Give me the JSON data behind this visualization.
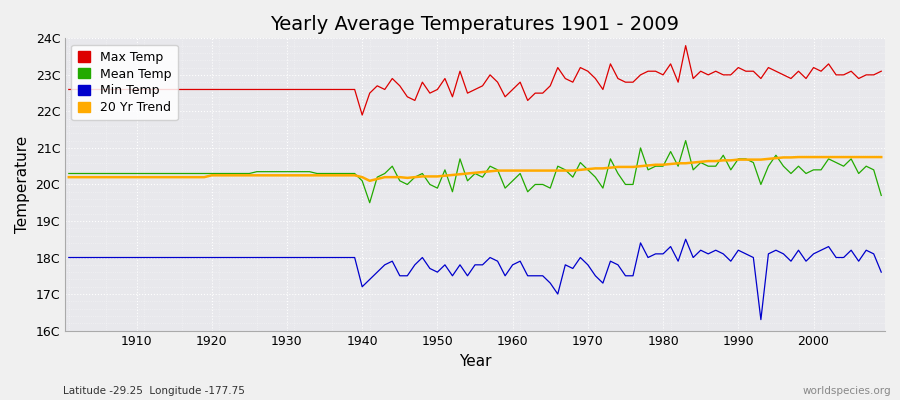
{
  "title": "Yearly Average Temperatures 1901 - 2009",
  "xlabel": "Year",
  "ylabel": "Temperature",
  "lat_lon_label": "Latitude -29.25  Longitude -177.75",
  "watermark": "worldspecies.org",
  "years": [
    1901,
    1902,
    1903,
    1904,
    1905,
    1906,
    1907,
    1908,
    1909,
    1910,
    1911,
    1912,
    1913,
    1914,
    1915,
    1916,
    1917,
    1918,
    1919,
    1920,
    1921,
    1922,
    1923,
    1924,
    1925,
    1926,
    1927,
    1928,
    1929,
    1930,
    1931,
    1932,
    1933,
    1934,
    1935,
    1936,
    1937,
    1938,
    1939,
    1940,
    1941,
    1942,
    1943,
    1944,
    1945,
    1946,
    1947,
    1948,
    1949,
    1950,
    1951,
    1952,
    1953,
    1954,
    1955,
    1956,
    1957,
    1958,
    1959,
    1960,
    1961,
    1962,
    1963,
    1964,
    1965,
    1966,
    1967,
    1968,
    1969,
    1970,
    1971,
    1972,
    1973,
    1974,
    1975,
    1976,
    1977,
    1978,
    1979,
    1980,
    1981,
    1982,
    1983,
    1984,
    1985,
    1986,
    1987,
    1988,
    1989,
    1990,
    1991,
    1992,
    1993,
    1994,
    1995,
    1996,
    1997,
    1998,
    1999,
    2000,
    2001,
    2002,
    2003,
    2004,
    2005,
    2006,
    2007,
    2008,
    2009
  ],
  "max_temp": [
    22.6,
    22.6,
    22.6,
    22.6,
    22.6,
    22.6,
    22.6,
    22.6,
    22.6,
    22.6,
    22.6,
    22.6,
    22.6,
    22.6,
    22.6,
    22.6,
    22.6,
    22.6,
    22.6,
    22.6,
    22.6,
    22.6,
    22.6,
    22.6,
    22.6,
    22.6,
    22.6,
    22.6,
    22.6,
    22.6,
    22.6,
    22.6,
    22.6,
    22.6,
    22.6,
    22.6,
    22.6,
    22.6,
    22.6,
    21.9,
    22.5,
    22.7,
    22.6,
    22.9,
    22.7,
    22.4,
    22.3,
    22.8,
    22.5,
    22.6,
    22.9,
    22.4,
    23.1,
    22.5,
    22.6,
    22.7,
    23.0,
    22.8,
    22.4,
    22.6,
    22.8,
    22.3,
    22.5,
    22.5,
    22.7,
    23.2,
    22.9,
    22.8,
    23.2,
    23.1,
    22.9,
    22.6,
    23.3,
    22.9,
    22.8,
    22.8,
    23.0,
    23.1,
    23.1,
    23.0,
    23.3,
    22.8,
    23.8,
    22.9,
    23.1,
    23.0,
    23.1,
    23.0,
    23.0,
    23.2,
    23.1,
    23.1,
    22.9,
    23.2,
    23.1,
    23.0,
    22.9,
    23.1,
    22.9,
    23.2,
    23.1,
    23.3,
    23.0,
    23.0,
    23.1,
    22.9,
    23.0,
    23.0,
    23.1
  ],
  "mean_temp": [
    20.3,
    20.3,
    20.3,
    20.3,
    20.3,
    20.3,
    20.3,
    20.3,
    20.3,
    20.3,
    20.3,
    20.3,
    20.3,
    20.3,
    20.3,
    20.3,
    20.3,
    20.3,
    20.3,
    20.3,
    20.3,
    20.3,
    20.3,
    20.3,
    20.3,
    20.35,
    20.35,
    20.35,
    20.35,
    20.35,
    20.35,
    20.35,
    20.35,
    20.3,
    20.3,
    20.3,
    20.3,
    20.3,
    20.3,
    20.1,
    19.5,
    20.2,
    20.3,
    20.5,
    20.1,
    20.0,
    20.2,
    20.3,
    20.0,
    19.9,
    20.4,
    19.8,
    20.7,
    20.1,
    20.3,
    20.2,
    20.5,
    20.4,
    19.9,
    20.1,
    20.3,
    19.8,
    20.0,
    20.0,
    19.9,
    20.5,
    20.4,
    20.2,
    20.6,
    20.4,
    20.2,
    19.9,
    20.7,
    20.3,
    20.0,
    20.0,
    21.0,
    20.4,
    20.5,
    20.5,
    20.9,
    20.5,
    21.2,
    20.4,
    20.6,
    20.5,
    20.5,
    20.8,
    20.4,
    20.7,
    20.7,
    20.6,
    20.0,
    20.5,
    20.8,
    20.5,
    20.3,
    20.5,
    20.3,
    20.4,
    20.4,
    20.7,
    20.6,
    20.5,
    20.7,
    20.3,
    20.5,
    20.4,
    19.7
  ],
  "min_temp": [
    18.0,
    18.0,
    18.0,
    18.0,
    18.0,
    18.0,
    18.0,
    18.0,
    18.0,
    18.0,
    18.0,
    18.0,
    18.0,
    18.0,
    18.0,
    18.0,
    18.0,
    18.0,
    18.0,
    18.0,
    18.0,
    18.0,
    18.0,
    18.0,
    18.0,
    18.0,
    18.0,
    18.0,
    18.0,
    18.0,
    18.0,
    18.0,
    18.0,
    18.0,
    18.0,
    18.0,
    18.0,
    18.0,
    18.0,
    17.2,
    17.4,
    17.6,
    17.8,
    17.9,
    17.5,
    17.5,
    17.8,
    18.0,
    17.7,
    17.6,
    17.8,
    17.5,
    17.8,
    17.5,
    17.8,
    17.8,
    18.0,
    17.9,
    17.5,
    17.8,
    17.9,
    17.5,
    17.5,
    17.5,
    17.3,
    17.0,
    17.8,
    17.7,
    18.0,
    17.8,
    17.5,
    17.3,
    17.9,
    17.8,
    17.5,
    17.5,
    18.4,
    18.0,
    18.1,
    18.1,
    18.3,
    17.9,
    18.5,
    18.0,
    18.2,
    18.1,
    18.2,
    18.1,
    17.9,
    18.2,
    18.1,
    18.0,
    16.3,
    18.1,
    18.2,
    18.1,
    17.9,
    18.2,
    17.9,
    18.1,
    18.2,
    18.3,
    18.0,
    18.0,
    18.2,
    17.9,
    18.2,
    18.1,
    17.6
  ],
  "trend": [
    20.2,
    20.2,
    20.2,
    20.2,
    20.2,
    20.2,
    20.2,
    20.2,
    20.2,
    20.2,
    20.2,
    20.2,
    20.2,
    20.2,
    20.2,
    20.2,
    20.2,
    20.2,
    20.2,
    20.25,
    20.25,
    20.25,
    20.25,
    20.25,
    20.25,
    20.25,
    20.25,
    20.25,
    20.25,
    20.25,
    20.25,
    20.25,
    20.25,
    20.25,
    20.25,
    20.25,
    20.25,
    20.25,
    20.25,
    20.2,
    20.1,
    20.15,
    20.2,
    20.2,
    20.2,
    20.18,
    20.2,
    20.22,
    20.22,
    20.22,
    20.24,
    20.26,
    20.28,
    20.3,
    20.32,
    20.34,
    20.36,
    20.38,
    20.38,
    20.38,
    20.38,
    20.38,
    20.38,
    20.38,
    20.38,
    20.38,
    20.38,
    20.38,
    20.4,
    20.42,
    20.44,
    20.44,
    20.46,
    20.48,
    20.48,
    20.48,
    20.5,
    20.52,
    20.54,
    20.54,
    20.56,
    20.58,
    20.58,
    20.6,
    20.62,
    20.64,
    20.64,
    20.66,
    20.66,
    20.68,
    20.68,
    20.68,
    20.68,
    20.7,
    20.72,
    20.74,
    20.74,
    20.75,
    20.75,
    20.75,
    20.75,
    20.75,
    20.75,
    20.75,
    20.75,
    20.75,
    20.75,
    20.75,
    20.75
  ],
  "fig_bg_color": "#f0f0f0",
  "plot_bg_color": "#e8e8ec",
  "max_color": "#dd0000",
  "mean_color": "#22aa00",
  "min_color": "#0000cc",
  "trend_color": "#ffaa00",
  "ylim": [
    16.0,
    24.0
  ],
  "yticks": [
    16,
    17,
    18,
    19,
    20,
    21,
    22,
    23,
    24
  ],
  "ytick_labels": [
    "16C",
    "17C",
    "18C",
    "19C",
    "20C",
    "21C",
    "22C",
    "23C",
    "24C"
  ],
  "title_fontsize": 14,
  "axis_label_fontsize": 11,
  "tick_fontsize": 9,
  "legend_fontsize": 9
}
